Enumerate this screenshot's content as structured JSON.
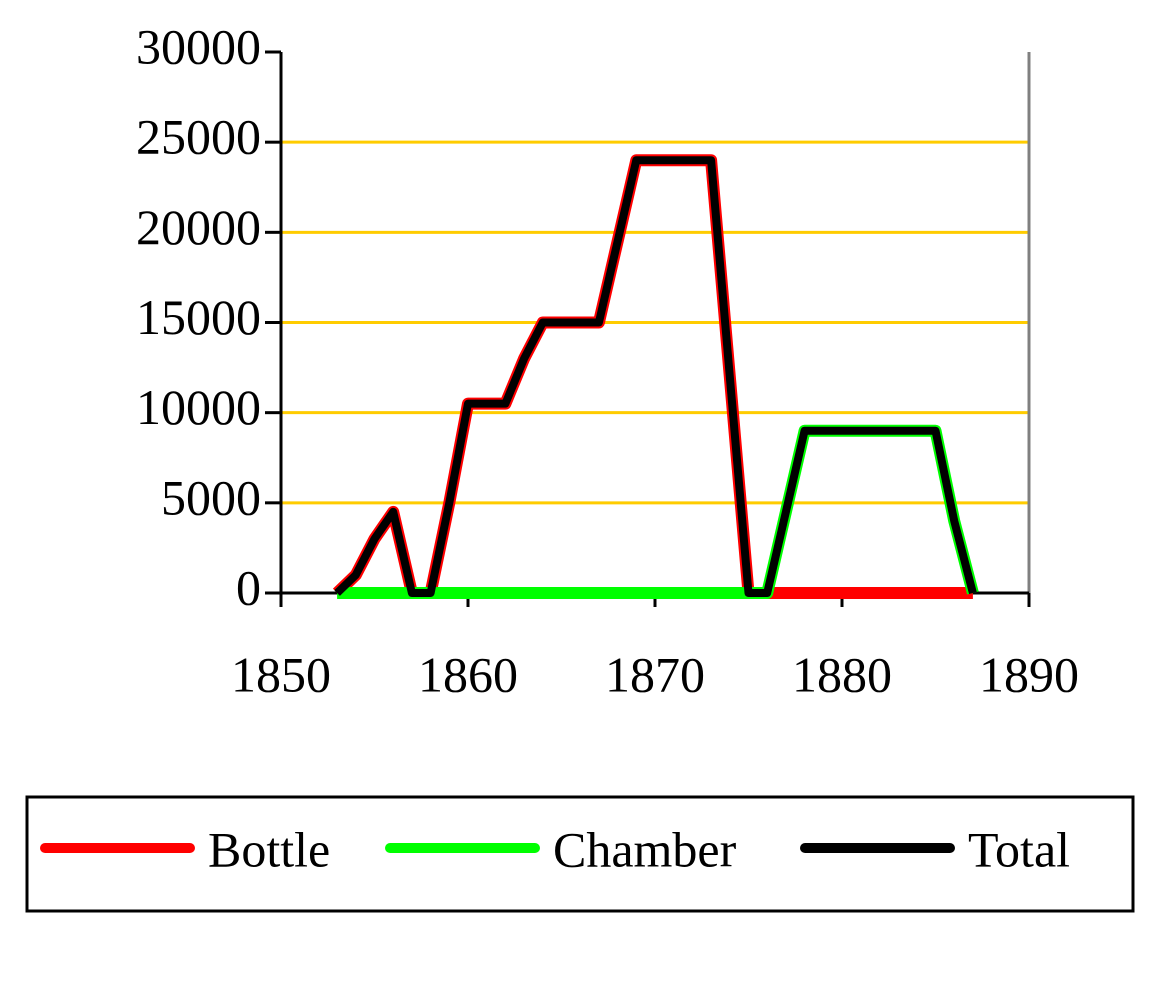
{
  "chart_data": {
    "type": "line",
    "x": [
      1853,
      1854,
      1855,
      1856,
      1857,
      1858,
      1859,
      1860,
      1861,
      1862,
      1863,
      1864,
      1865,
      1866,
      1867,
      1868,
      1869,
      1870,
      1871,
      1872,
      1873,
      1874,
      1875,
      1876,
      1877,
      1878,
      1879,
      1880,
      1881,
      1882,
      1883,
      1884,
      1885,
      1886,
      1887
    ],
    "series": [
      {
        "name": "Bottle",
        "color": "#ff0000",
        "values": [
          0,
          1000,
          3000,
          4500,
          0,
          0,
          5000,
          10500,
          10500,
          10500,
          13000,
          15000,
          15000,
          15000,
          15000,
          19500,
          24000,
          24000,
          24000,
          24000,
          24000,
          12000,
          0,
          0,
          0,
          0,
          0,
          0,
          0,
          0,
          0,
          0,
          0,
          0,
          0
        ]
      },
      {
        "name": "Chamber",
        "color": "#00ff00",
        "values": [
          0,
          0,
          0,
          0,
          0,
          0,
          0,
          0,
          0,
          0,
          0,
          0,
          0,
          0,
          0,
          0,
          0,
          0,
          0,
          0,
          0,
          0,
          0,
          0,
          4500,
          9000,
          9000,
          9000,
          9000,
          9000,
          9000,
          9000,
          9000,
          4000,
          0
        ]
      },
      {
        "name": "Total",
        "color": "#000000",
        "values": [
          0,
          1000,
          3000,
          4500,
          0,
          0,
          5000,
          10500,
          10500,
          10500,
          13000,
          15000,
          15000,
          15000,
          15000,
          19500,
          24000,
          24000,
          24000,
          24000,
          24000,
          12000,
          0,
          0,
          4500,
          9000,
          9000,
          9000,
          9000,
          9000,
          9000,
          9000,
          9000,
          4000,
          0
        ]
      }
    ],
    "xlim": [
      1850,
      1890
    ],
    "xticks": [
      1850,
      1860,
      1870,
      1880,
      1890
    ],
    "ylim": [
      0,
      30000
    ],
    "yticks": [
      0,
      5000,
      10000,
      15000,
      20000,
      25000,
      30000
    ],
    "grid": true,
    "grid_color": "#ffcc00",
    "legend": "bottom"
  }
}
